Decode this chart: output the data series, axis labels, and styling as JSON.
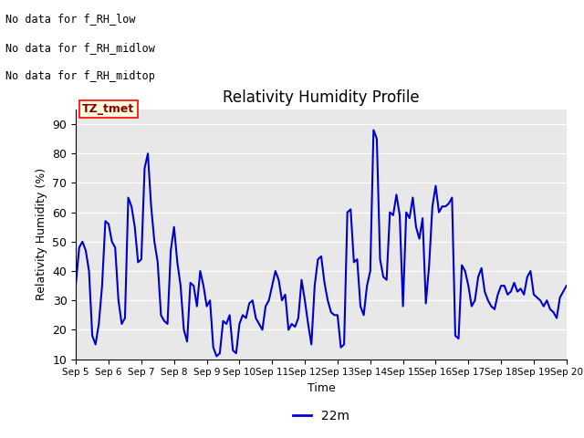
{
  "title": "Relativity Humidity Profile",
  "xlabel": "Time",
  "ylabel": "Relativity Humidity (%)",
  "ylim": [
    10,
    95
  ],
  "yticks": [
    10,
    20,
    30,
    40,
    50,
    60,
    70,
    80,
    90
  ],
  "line_color": "#0000cc",
  "line_width": 1.5,
  "legend_label": "22m",
  "no_data_texts": [
    "No data for f_RH_low",
    "No data for f_RH_midlow",
    "No data for f_RH_midtop"
  ],
  "tz_label": "TZ_tmet",
  "bg_color": "#e8e8e8",
  "xtick_labels": [
    "Sep 5",
    "Sep 6",
    "Sep 7",
    "Sep 8",
    "Sep 9",
    "Sep 10",
    "Sep 11",
    "Sep 12",
    "Sep 13",
    "Sep 14",
    "Sep 15",
    "Sep 16",
    "Sep 17",
    "Sep 18",
    "Sep 19",
    "Sep 20"
  ],
  "data_x": [
    0.0,
    0.1,
    0.2,
    0.3,
    0.4,
    0.5,
    0.6,
    0.7,
    0.8,
    0.9,
    1.0,
    1.1,
    1.2,
    1.3,
    1.4,
    1.5,
    1.6,
    1.7,
    1.8,
    1.9,
    2.0,
    2.1,
    2.2,
    2.3,
    2.4,
    2.5,
    2.6,
    2.7,
    2.8,
    2.9,
    3.0,
    3.1,
    3.2,
    3.3,
    3.4,
    3.5,
    3.6,
    3.7,
    3.8,
    3.9,
    4.0,
    4.1,
    4.2,
    4.3,
    4.4,
    4.5,
    4.6,
    4.7,
    4.8,
    4.9,
    5.0,
    5.1,
    5.2,
    5.3,
    5.4,
    5.5,
    5.6,
    5.7,
    5.8,
    5.9,
    6.0,
    6.1,
    6.2,
    6.3,
    6.4,
    6.5,
    6.6,
    6.7,
    6.8,
    6.9,
    7.0,
    7.1,
    7.2,
    7.3,
    7.4,
    7.5,
    7.6,
    7.7,
    7.8,
    7.9,
    8.0,
    8.1,
    8.2,
    8.3,
    8.4,
    8.5,
    8.6,
    8.7,
    8.8,
    8.9,
    9.0,
    9.1,
    9.2,
    9.3,
    9.4,
    9.5,
    9.6,
    9.7,
    9.8,
    9.9,
    10.0,
    10.1,
    10.2,
    10.3,
    10.4,
    10.5,
    10.6,
    10.7,
    10.8,
    10.9,
    11.0,
    11.1,
    11.2,
    11.3,
    11.4,
    11.5,
    11.6,
    11.7,
    11.8,
    11.9,
    12.0,
    12.1,
    12.2,
    12.3,
    12.4,
    12.5,
    12.6,
    12.7,
    12.8,
    12.9,
    13.0,
    13.1,
    13.2,
    13.3,
    13.4,
    13.5,
    13.6,
    13.7,
    13.8,
    13.9,
    14.0,
    14.1,
    14.2,
    14.3,
    14.4,
    14.5,
    14.6,
    14.7,
    14.8,
    14.9,
    15.0
  ],
  "data_y": [
    36,
    48,
    50,
    47,
    40,
    18,
    15,
    22,
    35,
    57,
    56,
    50,
    48,
    30,
    22,
    24,
    65,
    62,
    55,
    43,
    44,
    75,
    80,
    62,
    50,
    43,
    25,
    23,
    22,
    47,
    55,
    43,
    35,
    20,
    16,
    36,
    35,
    28,
    40,
    35,
    28,
    30,
    14,
    11,
    12,
    23,
    22,
    25,
    13,
    12,
    22,
    25,
    24,
    29,
    30,
    24,
    22,
    20,
    28,
    30,
    35,
    40,
    37,
    30,
    32,
    20,
    22,
    21,
    24,
    37,
    30,
    22,
    15,
    35,
    44,
    45,
    36,
    30,
    26,
    25,
    25,
    14,
    15,
    60,
    61,
    43,
    44,
    28,
    25,
    35,
    40,
    88,
    85,
    44,
    38,
    37,
    60,
    59,
    66,
    59,
    28,
    60,
    58,
    65,
    55,
    51,
    58,
    29,
    42,
    62,
    69,
    60,
    62,
    62,
    63,
    65,
    18,
    17,
    42,
    40,
    35,
    28,
    30,
    38,
    41,
    33,
    30,
    28,
    27,
    32,
    35,
    35,
    32,
    33,
    36,
    33,
    34,
    32,
    38,
    40,
    32,
    31,
    30,
    28,
    30,
    27,
    26,
    24,
    31,
    33,
    35
  ]
}
